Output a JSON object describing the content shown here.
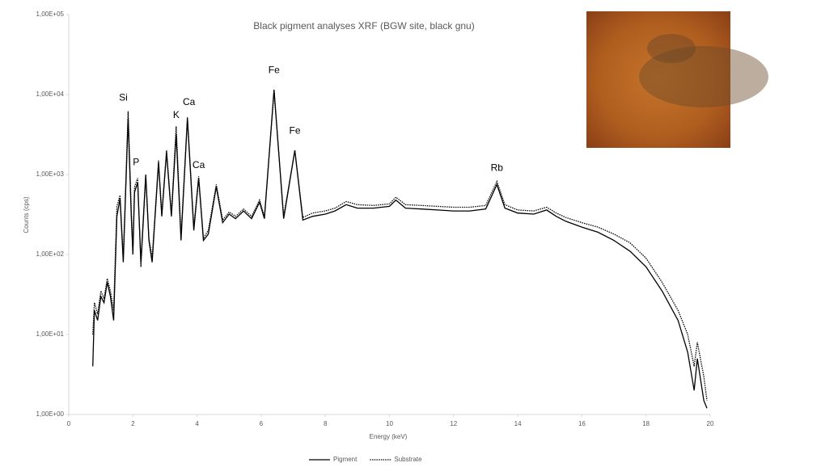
{
  "chart_data": {
    "type": "line",
    "title": "Black pigment analyses XRF (BGW site, black gnu)",
    "x_label": "Energy (keV)",
    "y_label": "Counts (cps)",
    "log_y": true,
    "grid": false,
    "legend": "bottom",
    "x": [
      0.75,
      0.8,
      0.9,
      1.0,
      1.1,
      1.2,
      1.3,
      1.4,
      1.5,
      1.6,
      1.7,
      1.85,
      1.95,
      2.0,
      2.05,
      2.15,
      2.25,
      2.4,
      2.5,
      2.6,
      2.8,
      2.9,
      3.05,
      3.2,
      3.35,
      3.5,
      3.7,
      3.9,
      4.05,
      4.2,
      4.35,
      4.6,
      4.8,
      5.0,
      5.2,
      5.45,
      5.7,
      5.95,
      6.1,
      6.4,
      6.7,
      7.05,
      7.3,
      7.6,
      8.0,
      8.3,
      8.65,
      9.0,
      9.5,
      10.0,
      10.2,
      10.5,
      11.0,
      11.5,
      12.0,
      12.5,
      13.0,
      13.35,
      13.6,
      14.0,
      14.5,
      14.9,
      15.2,
      15.5,
      16.0,
      16.5,
      17.0,
      17.5,
      18.0,
      18.5,
      19.0,
      19.3,
      19.5,
      19.6,
      19.8,
      19.9
    ],
    "series": [
      {
        "name": "Pigment",
        "color": "#000000",
        "line_style": "solid",
        "values": [
          4,
          20,
          15,
          30,
          25,
          45,
          30,
          15,
          300,
          500,
          80,
          5000,
          300,
          100,
          600,
          800,
          80,
          1000,
          150,
          80,
          1400,
          300,
          1900,
          300,
          3200,
          150,
          5000,
          200,
          900,
          150,
          180,
          700,
          250,
          320,
          280,
          350,
          280,
          450,
          280,
          11500,
          280,
          2000,
          270,
          300,
          320,
          350,
          420,
          380,
          380,
          400,
          480,
          380,
          370,
          360,
          350,
          350,
          370,
          750,
          380,
          330,
          320,
          360,
          300,
          260,
          220,
          190,
          150,
          110,
          70,
          35,
          15,
          6,
          2,
          5,
          1.5,
          1.2
        ]
      },
      {
        "name": "Substrate",
        "color": "#000000",
        "line_style": "dotted",
        "values": [
          10,
          25,
          18,
          35,
          28,
          50,
          35,
          20,
          400,
          550,
          90,
          6200,
          350,
          120,
          700,
          900,
          70,
          950,
          160,
          90,
          1500,
          320,
          2000,
          320,
          4000,
          170,
          5200,
          220,
          950,
          160,
          200,
          750,
          270,
          340,
          300,
          370,
          300,
          480,
          300,
          11000,
          300,
          2000,
          290,
          330,
          350,
          380,
          460,
          420,
          410,
          430,
          520,
          420,
          410,
          400,
          390,
          390,
          410,
          820,
          420,
          360,
          350,
          390,
          330,
          290,
          250,
          220,
          180,
          140,
          90,
          45,
          20,
          10,
          4,
          8,
          3,
          1.5
        ]
      }
    ],
    "xlim": [
      0,
      20
    ],
    "xticks": [
      0,
      2,
      4,
      6,
      8,
      10,
      12,
      14,
      16,
      18,
      20
    ],
    "ylim": [
      1,
      100000
    ],
    "yticks": [
      {
        "value": 1,
        "label": "1,00E+00"
      },
      {
        "value": 10,
        "label": "1,00E+01"
      },
      {
        "value": 100,
        "label": "1,00E+02"
      },
      {
        "value": 1000,
        "label": "1,00E+03"
      },
      {
        "value": 10000,
        "label": "1,00E+04"
      },
      {
        "value": 100000,
        "label": "1,00E+05"
      }
    ],
    "annotations": [
      {
        "text": "Si",
        "x": 1.7,
        "y": 9000
      },
      {
        "text": "P",
        "x": 2.1,
        "y": 1400
      },
      {
        "text": "K",
        "x": 3.35,
        "y": 5500
      },
      {
        "text": "Ca",
        "x": 3.75,
        "y": 8000
      },
      {
        "text": "Ca",
        "x": 4.05,
        "y": 1300
      },
      {
        "text": "Fe",
        "x": 6.4,
        "y": 20000
      },
      {
        "text": "Fe",
        "x": 7.05,
        "y": 3500
      },
      {
        "text": "Rb",
        "x": 13.35,
        "y": 1200
      }
    ]
  }
}
